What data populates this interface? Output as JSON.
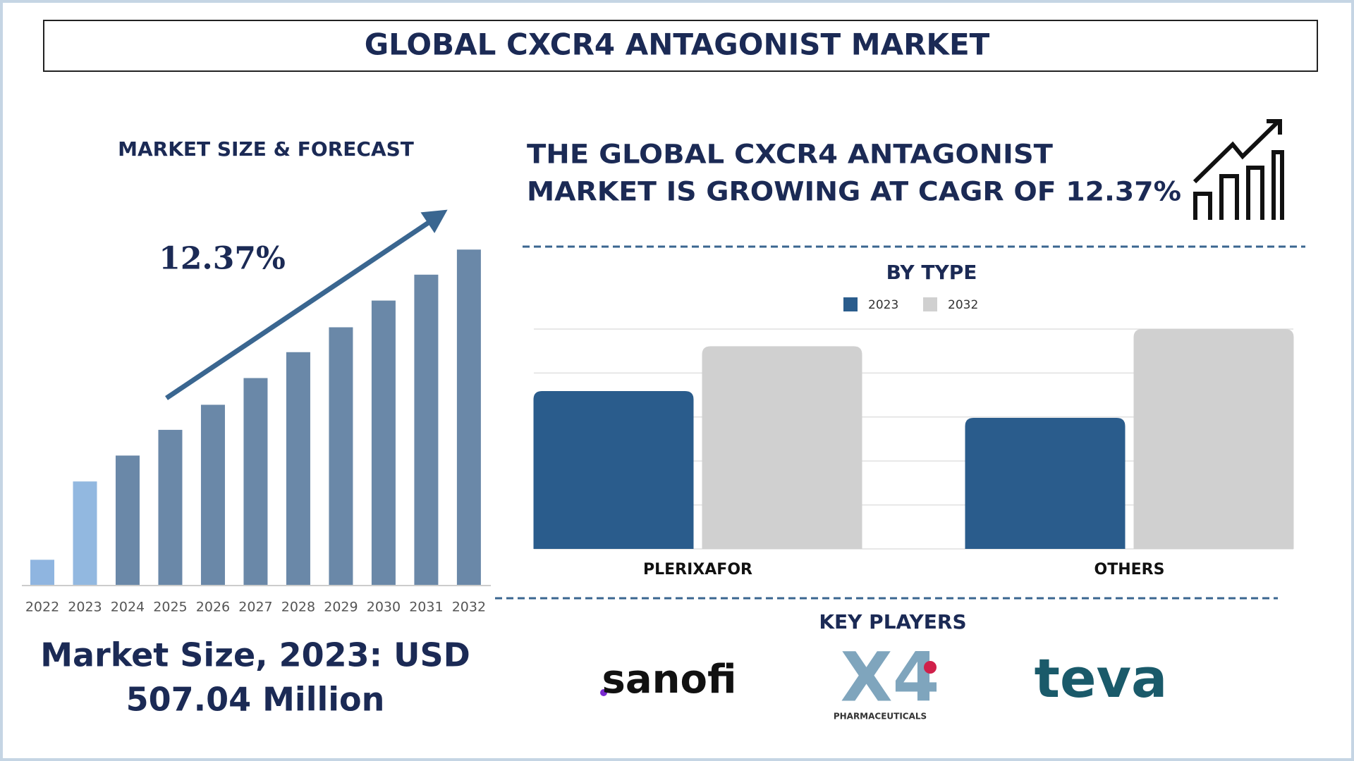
{
  "title": "GLOBAL CXCR4 ANTAGONIST MARKET",
  "headline": [
    "THE GLOBAL CXCR4 ANTAGONIST",
    "MARKET IS GROWING AT CAGR OF 12.37%"
  ],
  "market_size": [
    "Market Size, 2023: USD",
    "507.04 Million"
  ],
  "key_players": {
    "title": "KEY PLAYERS",
    "logos": [
      {
        "name": "sanofi"
      },
      {
        "name": "X4",
        "subtitle": "PHARMACEUTICALS"
      },
      {
        "name": "teva"
      }
    ]
  },
  "chart_data": [
    {
      "type": "bar",
      "title": "MARKET SIZE & FORECAST",
      "annotation": "12.37%",
      "categories": [
        "2022",
        "2023",
        "2024",
        "2025",
        "2026",
        "2027",
        "2028",
        "2029",
        "2030",
        "2031",
        "2032"
      ],
      "values": [
        123,
        507,
        634,
        760,
        883,
        1014,
        1141,
        1263,
        1394,
        1521,
        1644
      ],
      "colors": [
        "#8fb5e0",
        "#92b8e0",
        "#6a88a8",
        "#6a88a8",
        "#6a88a8",
        "#6a88a8",
        "#6a88a8",
        "#6a88a8",
        "#6a88a8",
        "#6a88a8",
        "#6a88a8"
      ],
      "ylim": [
        0,
        1700
      ]
    },
    {
      "type": "bar",
      "title": "BY TYPE",
      "categories": [
        "PLERIXAFOR",
        "OTHERS"
      ],
      "series": [
        {
          "name": "2023",
          "color": "#2a5c8c",
          "values": [
            3.59,
            2.98
          ]
        },
        {
          "name": "2032",
          "color": "#d0d0d0",
          "values": [
            4.61,
            5
          ]
        }
      ],
      "ylim": [
        0,
        5
      ],
      "yticks": [
        0,
        1,
        2,
        3,
        4,
        5
      ],
      "grid": true
    }
  ]
}
